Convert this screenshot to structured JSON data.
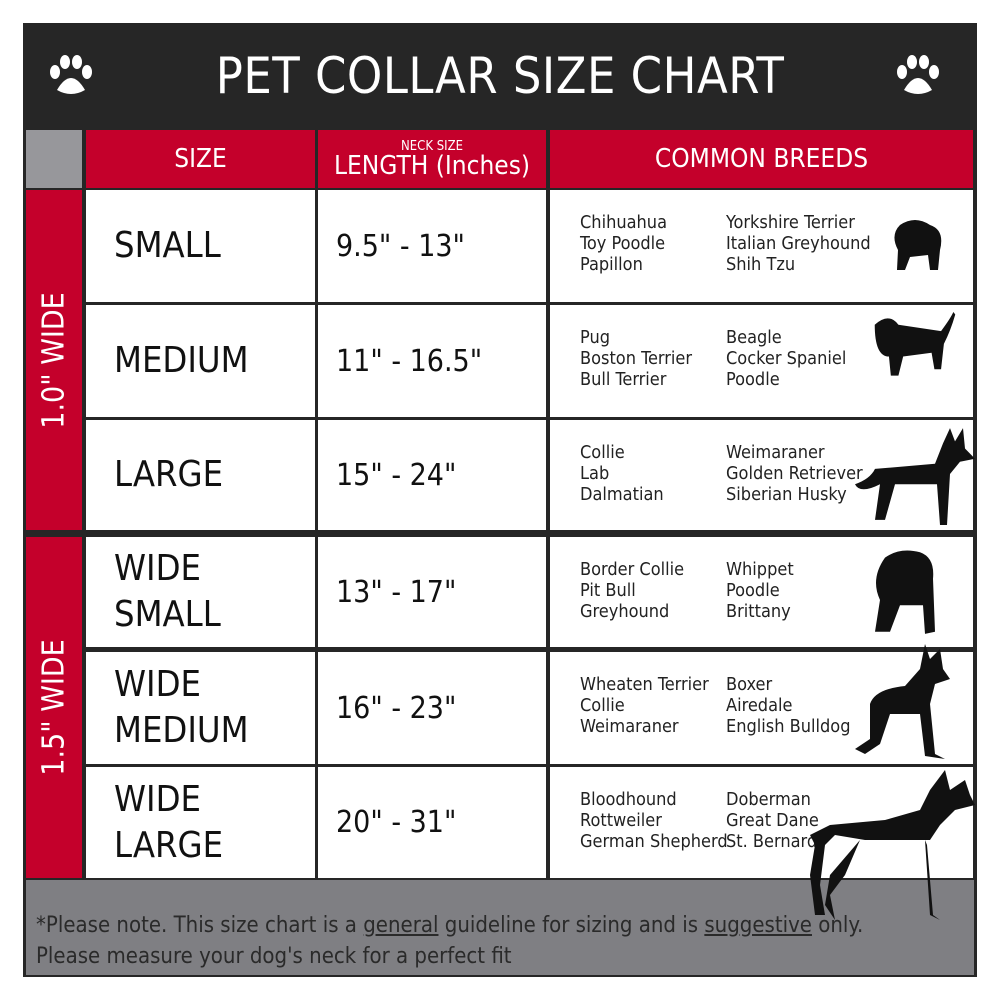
{
  "title": "PET COLLAR SIZE CHART",
  "icons": [
    "paw-icon",
    "paw-icon"
  ],
  "headers": {
    "size": "SIZE",
    "length_small": "NECK SIZE",
    "length": "LENGTH (Inches)",
    "breeds": "COMMON BREEDS"
  },
  "groups": [
    "1.0\" WIDE",
    "1.5\" WIDE"
  ],
  "rows": [
    {
      "size": "SMALL",
      "length": "9.5\" - 13\"",
      "col1": [
        "Chihuahua",
        "Toy Poodle",
        "Papillon"
      ],
      "col2": [
        "Yorkshire Terrier",
        "Italian Greyhound",
        "Shih Tzu"
      ]
    },
    {
      "size": "MEDIUM",
      "length": "11\" - 16.5\"",
      "col1": [
        "Pug",
        "Boston Terrier",
        "Bull Terrier"
      ],
      "col2": [
        "Beagle",
        "Cocker Spaniel",
        "Poodle"
      ]
    },
    {
      "size": "LARGE",
      "length": "15\" - 24\"",
      "col1": [
        "Collie",
        "Lab",
        "Dalmatian"
      ],
      "col2": [
        "Weimaraner",
        "Golden Retriever",
        "Siberian Husky"
      ]
    },
    {
      "size": "WIDE SMALL",
      "length": "13\" - 17\"",
      "col1": [
        "Border Collie",
        "Pit Bull",
        "Greyhound"
      ],
      "col2": [
        "Whippet",
        "Poodle",
        "Brittany"
      ]
    },
    {
      "size": "WIDE MEDIUM",
      "length": "16\" - 23\"",
      "col1": [
        "Wheaten Terrier",
        "Collie",
        "Weimaraner"
      ],
      "col2": [
        "Boxer",
        "Airedale",
        "English Bulldog"
      ]
    },
    {
      "size": "WIDE LARGE",
      "length": "20\" - 31\"",
      "col1": [
        "Bloodhound",
        "Rottweiler",
        "German Shepherd"
      ],
      "col2": [
        "Doberman",
        "Great Dane",
        "St. Bernard"
      ]
    }
  ],
  "footer": {
    "p1": "*Please note. This size chart is a ",
    "u1": "general",
    "p2": " guideline for sizing and is ",
    "u2": "suggestive",
    "p3": " only.",
    "line2": "Please measure your dog's neck for a perfect fit"
  },
  "colors": {
    "red": "#c4002b",
    "dark": "#262626",
    "gray": "#7f7f83"
  }
}
